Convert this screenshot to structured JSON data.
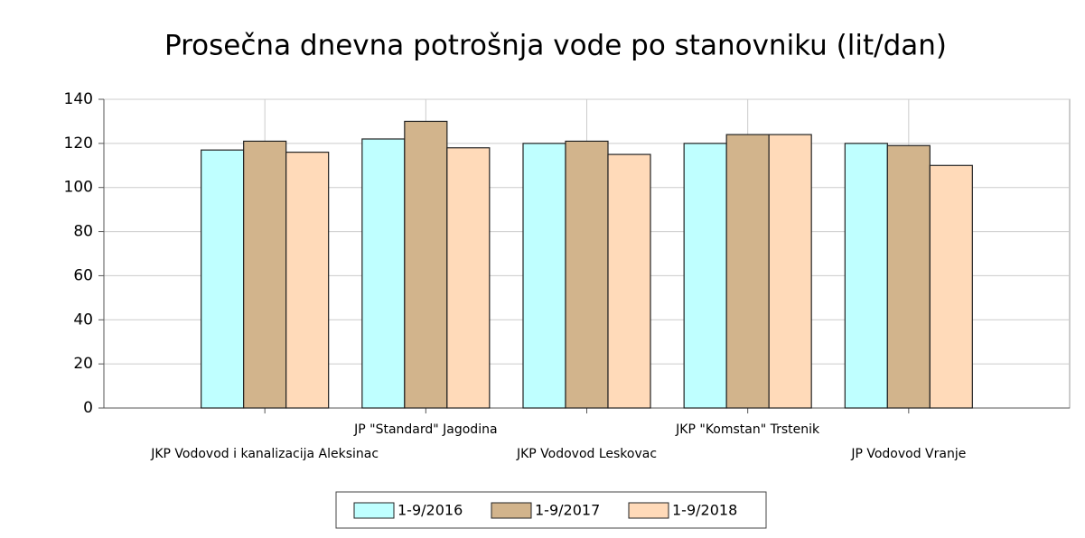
{
  "chart_data": {
    "type": "bar",
    "title": "Prosečna dnevna potrošnja vode po stanovniku (lit/dan)",
    "categories": [
      "JKP Vodovod i kanalizacija Aleksinac",
      "JP \"Standard\" Jagodina",
      "JKP Vodovod Leskovac",
      "JKP \"Komstan\" Trstenik",
      "JP Vodovod Vranje"
    ],
    "series": [
      {
        "name": "1-9/2016",
        "color": "#bfffff",
        "values": [
          117,
          122,
          120,
          120,
          120
        ]
      },
      {
        "name": "1-9/2017",
        "color": "#d2b48c",
        "values": [
          121,
          130,
          121,
          124,
          119
        ]
      },
      {
        "name": "1-9/2018",
        "color": "#ffdab9",
        "values": [
          116,
          118,
          115,
          124,
          110
        ]
      }
    ],
    "ylim": [
      0,
      140
    ],
    "yticks": [
      0,
      20,
      40,
      60,
      80,
      100,
      120,
      140
    ],
    "grid": true,
    "legend": "bottom"
  }
}
